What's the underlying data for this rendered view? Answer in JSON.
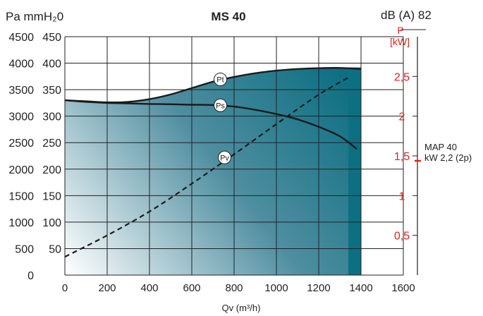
{
  "header": {
    "units_left": "Pa mmH₂0",
    "title": "MS 40",
    "noise": "dB (A) 82"
  },
  "right_axis": {
    "label_line1": "P",
    "label_line2": "[kW]",
    "color": "#e2231a"
  },
  "motor_note": {
    "line1": "MAP 40",
    "line2": "kW 2,2 (2p)",
    "power_kw": 2.2
  },
  "colors": {
    "fill_dark": "#0d6f82",
    "fill_light": "#ffffff",
    "grid": "#222222",
    "accent_red": "#e2231a"
  },
  "chart_data": {
    "type": "line",
    "title": "MS 40",
    "xlabel": "Qv (m³/h)",
    "xlim": [
      0,
      1600
    ],
    "x_ticks": [
      "0",
      "200",
      "400",
      "600",
      "800",
      "1000",
      "1200",
      "1400",
      "1600"
    ],
    "ylim_pa": [
      0,
      4500
    ],
    "y_ticks_pa": [
      "0",
      "500",
      "1000",
      "1500",
      "2000",
      "2500",
      "3000",
      "3500",
      "4000",
      "4500"
    ],
    "y_ticks_mmh2o": [
      "",
      "50",
      "100",
      "150",
      "200",
      "250",
      "300",
      "350",
      "400",
      "450"
    ],
    "ylim_kw": [
      0,
      3
    ],
    "kw_ticks": [
      "0,5",
      "1",
      "1,5",
      "2",
      "2,5"
    ],
    "series": [
      {
        "name": "Pt",
        "unit": "Pa",
        "x": [
          0,
          100,
          200,
          300,
          400,
          500,
          600,
          700,
          800,
          900,
          1000,
          1100,
          1200,
          1300,
          1400
        ],
        "y": [
          3300,
          3280,
          3260,
          3270,
          3320,
          3410,
          3530,
          3650,
          3740,
          3810,
          3860,
          3890,
          3905,
          3910,
          3890
        ]
      },
      {
        "name": "Ps",
        "unit": "Pa",
        "x": [
          0,
          100,
          200,
          300,
          400,
          500,
          600,
          700,
          800,
          900,
          1000,
          1100,
          1200,
          1300,
          1380
        ],
        "y": [
          3300,
          3270,
          3250,
          3240,
          3230,
          3225,
          3215,
          3210,
          3180,
          3120,
          3040,
          2940,
          2800,
          2620,
          2380
        ]
      },
      {
        "name": "Pv",
        "unit": "kW",
        "x": [
          0,
          200,
          400,
          600,
          800,
          1000,
          1200,
          1350
        ],
        "y": [
          0.23,
          0.5,
          0.8,
          1.15,
          1.52,
          1.9,
          2.27,
          2.5
        ]
      }
    ]
  }
}
